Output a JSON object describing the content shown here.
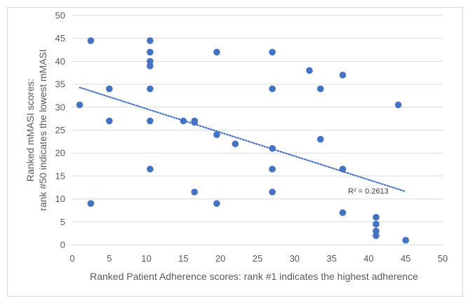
{
  "chart_data": {
    "type": "scatter",
    "xlabel": "Ranked Patient Adherence scores: rank #1 indicates the highest adherence",
    "ylabel_lines": [
      "Ranked mMASI scores:",
      "rank #50 indicates the lowest mMASI"
    ],
    "xlim": [
      0,
      50
    ],
    "ylim": [
      0,
      50
    ],
    "x_ticks": [
      0,
      5,
      10,
      15,
      20,
      25,
      30,
      35,
      40,
      45,
      50
    ],
    "y_ticks": [
      0,
      5,
      10,
      15,
      20,
      25,
      30,
      35,
      40,
      45,
      50
    ],
    "grid": "horizontal",
    "marker_color": "#4472c4",
    "trendline": {
      "type": "linear",
      "x": [
        1,
        45
      ],
      "y": [
        34.3,
        11.6
      ],
      "color": "#4472c4",
      "style": "dotted"
    },
    "r_squared_label": "R² = 0.2613",
    "points": [
      {
        "x": 1,
        "y": 30.5
      },
      {
        "x": 2.5,
        "y": 44.5
      },
      {
        "x": 2.5,
        "y": 9
      },
      {
        "x": 5,
        "y": 34
      },
      {
        "x": 5,
        "y": 27
      },
      {
        "x": 10.5,
        "y": 44.5
      },
      {
        "x": 10.5,
        "y": 42
      },
      {
        "x": 10.5,
        "y": 40
      },
      {
        "x": 10.5,
        "y": 39
      },
      {
        "x": 10.5,
        "y": 34
      },
      {
        "x": 10.5,
        "y": 27
      },
      {
        "x": 10.5,
        "y": 16.5
      },
      {
        "x": 15,
        "y": 27
      },
      {
        "x": 16.5,
        "y": 27
      },
      {
        "x": 16.5,
        "y": 26.7
      },
      {
        "x": 16.5,
        "y": 11.5
      },
      {
        "x": 19.5,
        "y": 42
      },
      {
        "x": 19.5,
        "y": 24
      },
      {
        "x": 19.5,
        "y": 9
      },
      {
        "x": 22,
        "y": 22
      },
      {
        "x": 27,
        "y": 42
      },
      {
        "x": 27,
        "y": 34
      },
      {
        "x": 27,
        "y": 21
      },
      {
        "x": 27,
        "y": 16.5
      },
      {
        "x": 27,
        "y": 11.5
      },
      {
        "x": 32,
        "y": 38
      },
      {
        "x": 33.5,
        "y": 34
      },
      {
        "x": 33.5,
        "y": 23
      },
      {
        "x": 36.5,
        "y": 37
      },
      {
        "x": 36.5,
        "y": 16.5
      },
      {
        "x": 36.5,
        "y": 7
      },
      {
        "x": 41,
        "y": 6
      },
      {
        "x": 41,
        "y": 4.5
      },
      {
        "x": 41,
        "y": 3
      },
      {
        "x": 41,
        "y": 2
      },
      {
        "x": 44,
        "y": 30.5
      },
      {
        "x": 45,
        "y": 1
      }
    ]
  }
}
